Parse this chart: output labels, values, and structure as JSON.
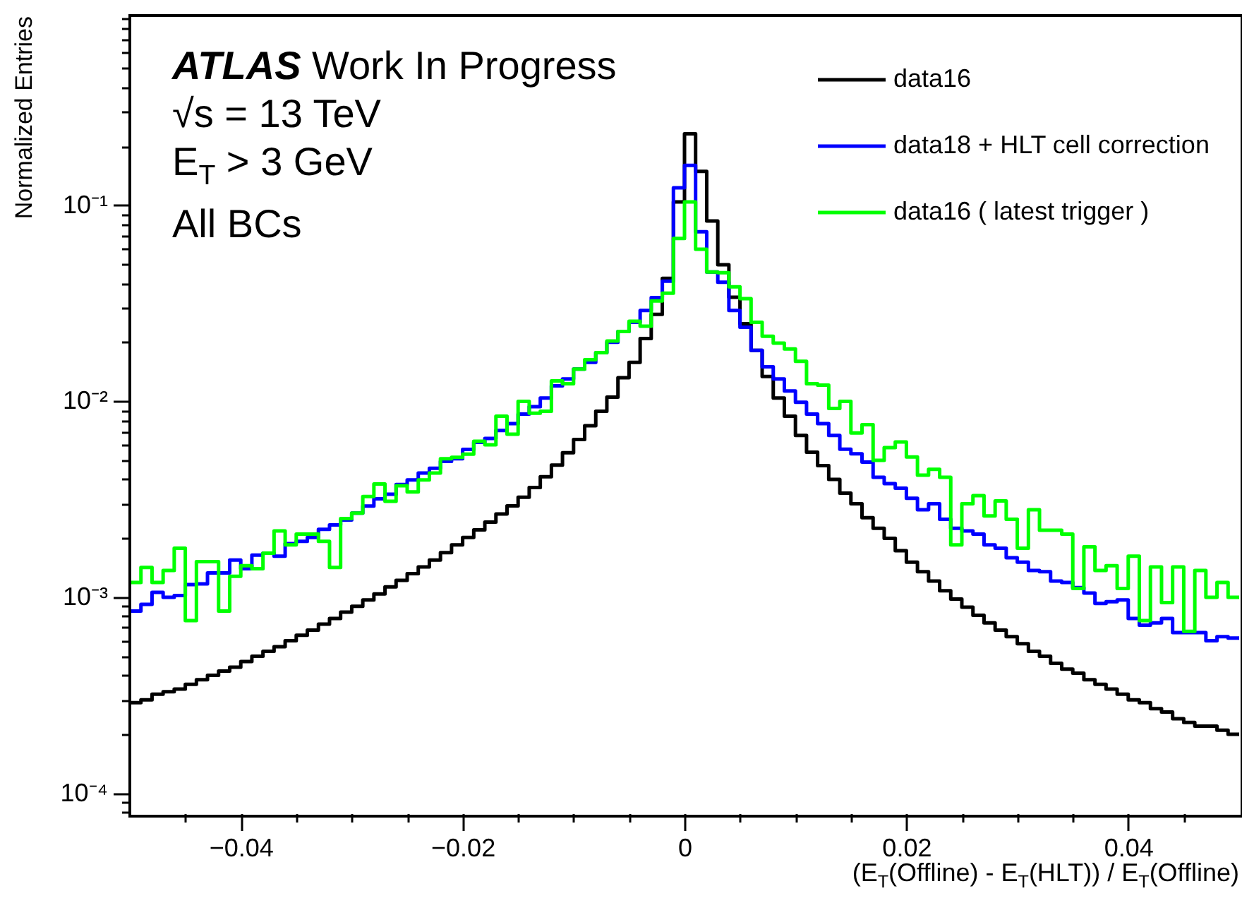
{
  "chart_data": {
    "type": "histogram",
    "annotations": [
      "ATLAS Work In Progress",
      "√s = 13 TeV",
      "E$_{T}$ > 3 GeV",
      "All BCs"
    ],
    "xlabel": "(E$_{T}$(Offline) - E$_{T}$(HLT)) / E$_{T}$(Offline)",
    "ylabel": "Normalized Entries",
    "log": true,
    "grid": false,
    "legend": "top right",
    "xlim": [
      -0.05,
      0.05
    ],
    "ylim": [
      7.9e-05,
      0.93
    ],
    "xticks": [
      {
        "value": -0.045,
        "label": null
      },
      {
        "value": -0.04,
        "label": "−0.04"
      },
      {
        "value": -0.035,
        "label": null
      },
      {
        "value": -0.03,
        "label": null
      },
      {
        "value": -0.025,
        "label": null
      },
      {
        "value": -0.02,
        "label": "−0.02"
      },
      {
        "value": -0.015,
        "label": null
      },
      {
        "value": -0.01,
        "label": null
      },
      {
        "value": -0.005,
        "label": null
      },
      0,
      {
        "value": 0.005,
        "label": null
      },
      {
        "value": 0.01,
        "label": null
      },
      {
        "value": 0.015,
        "label": null
      },
      0.02,
      {
        "value": 0.025,
        "label": null
      },
      {
        "value": 0.03,
        "label": null
      },
      {
        "value": 0.035,
        "label": null
      },
      0.04,
      {
        "value": 0.045,
        "label": null
      }
    ],
    "yticks": [
      {
        "value": 8e-05,
        "label": null
      },
      {
        "value": 9e-05,
        "label": null
      },
      {
        "value": 0.0001,
        "label": "10⁻⁴"
      },
      {
        "value": 0.0002,
        "label": null
      },
      {
        "value": 0.0003,
        "label": null
      },
      {
        "value": 0.0004,
        "label": null
      },
      {
        "value": 0.0005,
        "label": null
      },
      {
        "value": 0.0006,
        "label": null
      },
      {
        "value": 0.0007,
        "label": null
      },
      {
        "value": 0.0008,
        "label": null
      },
      {
        "value": 0.0009,
        "label": null
      },
      {
        "value": 0.001,
        "label": "10⁻³"
      },
      {
        "value": 0.002,
        "label": null
      },
      {
        "value": 0.003,
        "label": null
      },
      {
        "value": 0.004,
        "label": null
      },
      {
        "value": 0.005,
        "label": null
      },
      {
        "value": 0.006,
        "label": null
      },
      {
        "value": 0.007,
        "label": null
      },
      {
        "value": 0.008,
        "label": null
      },
      {
        "value": 0.009,
        "label": null
      },
      {
        "value": 0.01,
        "label": "10⁻²"
      },
      {
        "value": 0.02,
        "label": null
      },
      {
        "value": 0.03,
        "label": null
      },
      {
        "value": 0.04,
        "label": null
      },
      {
        "value": 0.05,
        "label": null
      },
      {
        "value": 0.06,
        "label": null
      },
      {
        "value": 0.07,
        "label": null
      },
      {
        "value": 0.08,
        "label": null
      },
      {
        "value": 0.09,
        "label": null
      },
      {
        "value": 0.1,
        "label": "10⁻¹"
      },
      {
        "value": 0.2,
        "label": null
      },
      {
        "value": 0.3,
        "label": null
      },
      {
        "value": 0.4,
        "label": null
      },
      {
        "value": 0.5,
        "label": null
      },
      {
        "value": 0.6,
        "label": null
      },
      {
        "value": 0.7,
        "label": null
      },
      {
        "value": 0.8,
        "label": null
      },
      {
        "value": 0.9,
        "label": null
      }
    ],
    "bins": [
      -0.05,
      -0.049,
      -0.048,
      -0.047,
      -0.046,
      -0.045,
      -0.044,
      -0.043,
      -0.042,
      -0.041,
      -0.04,
      -0.039,
      -0.038,
      -0.037,
      -0.036,
      -0.035,
      -0.034,
      -0.033,
      -0.032,
      -0.031,
      -0.03,
      -0.029,
      -0.028,
      -0.027,
      -0.026,
      -0.025,
      -0.024,
      -0.023,
      -0.022,
      -0.021,
      -0.02,
      -0.019,
      -0.018,
      -0.017,
      -0.016,
      -0.015,
      -0.014,
      -0.013,
      -0.012,
      -0.011,
      -0.01,
      -0.009,
      -0.008,
      -0.007,
      -0.006,
      -0.005,
      -0.004,
      -0.003,
      -0.002,
      -0.001,
      0,
      0.001,
      0.002,
      0.003,
      0.004,
      0.005,
      0.006,
      0.007,
      0.008,
      0.009,
      0.01,
      0.011,
      0.012,
      0.013,
      0.014,
      0.015,
      0.016,
      0.017,
      0.018,
      0.019,
      0.02,
      0.021,
      0.022,
      0.023,
      0.024,
      0.025,
      0.026,
      0.027,
      0.028,
      0.029,
      0.03,
      0.031,
      0.032,
      0.033,
      0.034,
      0.035,
      0.036,
      0.037,
      0.038,
      0.039,
      0.04,
      0.041,
      0.042,
      0.043,
      0.044,
      0.045,
      0.046,
      0.047,
      0.048,
      0.049,
      0.05
    ],
    "series": [
      {
        "name": "data16",
        "color": "#000000",
        "values": [
          0.00029,
          0.0003,
          0.00032,
          0.00033,
          0.00034,
          0.00036,
          0.00038,
          0.0004,
          0.00042,
          0.00044,
          0.00047,
          0.0005,
          0.00053,
          0.00056,
          0.0006,
          0.00064,
          0.00068,
          0.00073,
          0.00078,
          0.00084,
          0.0009,
          0.00097,
          0.00104,
          0.00113,
          0.00122,
          0.00132,
          0.00143,
          0.00155,
          0.00169,
          0.00185,
          0.00202,
          0.00221,
          0.00242,
          0.00266,
          0.00293,
          0.00324,
          0.00363,
          0.00412,
          0.00473,
          0.00547,
          0.00638,
          0.0075,
          0.0089,
          0.0105,
          0.0132,
          0.0158,
          0.0209,
          0.0278,
          0.0424,
          0.104,
          0.232,
          0.149,
          0.0832,
          0.0498,
          0.034,
          0.0249,
          0.0182,
          0.0134,
          0.0104,
          0.0084,
          0.0067,
          0.0055,
          0.0047,
          0.004,
          0.0034,
          0.003,
          0.00255,
          0.00225,
          0.002,
          0.00173,
          0.00151,
          0.00135,
          0.00121,
          0.00108,
          0.00098,
          0.00089,
          0.00081,
          0.00074,
          0.00068,
          0.00063,
          0.00058,
          0.00053,
          0.0005,
          0.00046,
          0.00043,
          0.00041,
          0.00038,
          0.00036,
          0.00034,
          0.00032,
          0.0003,
          0.00029,
          0.00027,
          0.00026,
          0.00024,
          0.00023,
          0.00022,
          0.00022,
          0.00021,
          0.0002
        ]
      },
      {
        "name": "data18 + HLT cell correction",
        "color": "#0000ff",
        "values": [
          0.00085,
          0.00092,
          0.00106,
          0.001,
          0.00102,
          0.00116,
          0.00117,
          0.00133,
          0.00133,
          0.00155,
          0.0014,
          0.00164,
          0.00168,
          0.00162,
          0.00188,
          0.00193,
          0.00202,
          0.00222,
          0.00234,
          0.00248,
          0.00269,
          0.00292,
          0.00318,
          0.00336,
          0.00376,
          0.00397,
          0.00431,
          0.00455,
          0.00494,
          0.00509,
          0.00569,
          0.00618,
          0.00646,
          0.0071,
          0.0077,
          0.0086,
          0.0094,
          0.0104,
          0.012,
          0.013,
          0.0146,
          0.0158,
          0.0177,
          0.02,
          0.0227,
          0.0253,
          0.0291,
          0.0338,
          0.041,
          0.123,
          0.16,
          0.0733,
          0.0457,
          0.0405,
          0.0291,
          0.0239,
          0.0182,
          0.015,
          0.013,
          0.0113,
          0.0099,
          0.0086,
          0.0077,
          0.0067,
          0.0057,
          0.0054,
          0.0049,
          0.0041,
          0.0038,
          0.0036,
          0.0032,
          0.0028,
          0.003,
          0.0025,
          0.00225,
          0.00218,
          0.0021,
          0.00185,
          0.00178,
          0.00159,
          0.00151,
          0.00137,
          0.00135,
          0.00121,
          0.00119,
          0.00112,
          0.00105,
          0.00093,
          0.00095,
          0.00097,
          0.00078,
          0.00072,
          0.00074,
          0.00078,
          0.00066,
          0.00066,
          0.00066,
          0.0006,
          0.00063,
          0.00062
        ]
      },
      {
        "name": "data16 ( latest trigger )",
        "color": "#00ff00",
        "values": [
          0.00119,
          0.00142,
          0.00119,
          0.00137,
          0.00178,
          0.00076,
          0.00152,
          0.00152,
          0.00085,
          0.00128,
          0.00145,
          0.0014,
          0.00168,
          0.00218,
          0.00185,
          0.0021,
          0.0021,
          0.00193,
          0.00142,
          0.00252,
          0.00269,
          0.00327,
          0.00379,
          0.00309,
          0.00371,
          0.00345,
          0.00397,
          0.00431,
          0.00509,
          0.00518,
          0.00537,
          0.00625,
          0.006,
          0.0084,
          0.0068,
          0.01,
          0.0087,
          0.0089,
          0.0127,
          0.0123,
          0.0146,
          0.0163,
          0.0177,
          0.0203,
          0.0227,
          0.0256,
          0.0242,
          0.0325,
          0.0356,
          0.0678,
          0.104,
          0.0597,
          0.0457,
          0.0453,
          0.0384,
          0.0334,
          0.0253,
          0.0215,
          0.0198,
          0.0185,
          0.016,
          0.0123,
          0.0121,
          0.0092,
          0.01,
          0.0069,
          0.0076,
          0.005,
          0.0058,
          0.0062,
          0.0052,
          0.0042,
          0.0045,
          0.0041,
          0.00185,
          0.003,
          0.0033,
          0.0026,
          0.0031,
          0.0025,
          0.00178,
          0.0028,
          0.0022,
          0.0022,
          0.0021,
          0.00111,
          0.00181,
          0.00137,
          0.00145,
          0.00111,
          0.00162,
          0.00076,
          0.00143,
          0.00094,
          0.00143,
          0.00067,
          0.00137,
          0.001,
          0.00119,
          0.001
        ]
      }
    ]
  }
}
